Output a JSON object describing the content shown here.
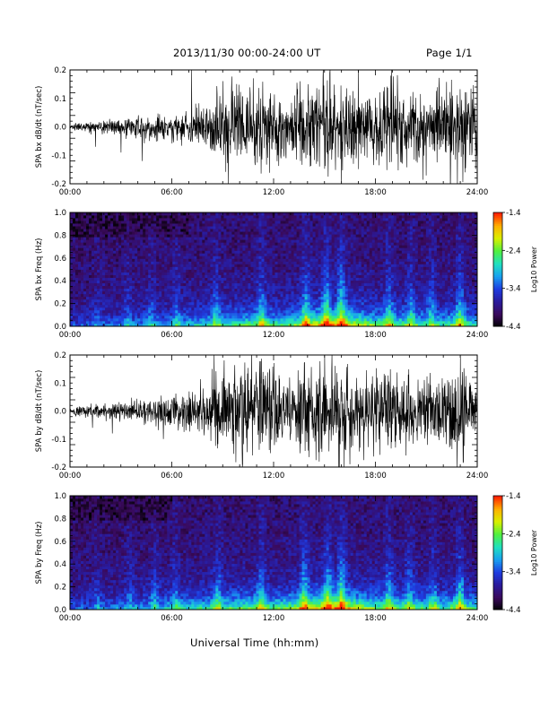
{
  "header": {
    "date_range": "2013/11/30  00:00-24:00 UT",
    "page": "Page 1/1"
  },
  "footer": {
    "xlabel": "Universal Time (hh:mm)"
  },
  "colors": {
    "trace": "#000000",
    "frame": "#000000",
    "background": "#ffffff",
    "colormap": [
      "#000000",
      "#3a0a5c",
      "#2a1a9a",
      "#1f3ce0",
      "#19a0f0",
      "#20e0c0",
      "#50f040",
      "#d8f000",
      "#ffb000",
      "#ff2000"
    ]
  },
  "chart_data": [
    {
      "type": "line",
      "subtype": "waveform",
      "ylabel": "SPA bx dB/dt (nT/sec)",
      "xlim": [
        "00:00",
        "24:00"
      ],
      "ylim": [
        -0.2,
        0.2
      ],
      "xticks": [
        "00:00",
        "06:00",
        "12:00",
        "18:00",
        "24:00"
      ],
      "yticks": [
        "-0.2",
        "-0.1",
        "0.0",
        "0.1",
        "0.2"
      ],
      "envelope_hours": [
        0,
        2,
        4,
        6,
        8,
        9,
        10,
        11,
        12,
        13,
        14,
        15,
        16,
        17,
        18,
        19,
        20,
        21,
        22,
        23,
        24
      ],
      "envelope_amplitude": [
        0.015,
        0.03,
        0.05,
        0.06,
        0.09,
        0.16,
        0.17,
        0.18,
        0.17,
        0.16,
        0.2,
        0.2,
        0.2,
        0.18,
        0.16,
        0.2,
        0.16,
        0.17,
        0.18,
        0.2,
        0.15
      ],
      "spikes": [
        {
          "time": "01:30",
          "value": -0.07
        },
        {
          "time": "03:00",
          "value": -0.09
        },
        {
          "time": "04:15",
          "value": -0.12
        },
        {
          "time": "07:10",
          "value": 0.2
        },
        {
          "time": "09:20",
          "value": -0.2
        },
        {
          "time": "15:20",
          "value": 0.2
        },
        {
          "time": "16:00",
          "value": -0.2
        },
        {
          "time": "22:50",
          "value": -0.2
        }
      ]
    },
    {
      "type": "heatmap",
      "subtype": "spectrogram",
      "ylabel": "SPA bx Freq (Hz)",
      "xlim": [
        "00:00",
        "24:00"
      ],
      "ylim": [
        0.0,
        1.0
      ],
      "xticks": [
        "00:00",
        "06:00",
        "12:00",
        "18:00",
        "24:00"
      ],
      "yticks": [
        "0.0",
        "0.2",
        "0.4",
        "0.6",
        "0.8",
        "1.0"
      ],
      "colorbar": {
        "label": "Log10 Power",
        "ticks": [
          "-1.4",
          "-2.4",
          "-3.4",
          "-4.4"
        ],
        "range": [
          -4.4,
          -1.4
        ]
      },
      "activity_hours": [
        0,
        3,
        6,
        8,
        9,
        10,
        11,
        12,
        13,
        14,
        15,
        16,
        17,
        18,
        19,
        20,
        21,
        22,
        23,
        24
      ],
      "activity_level": [
        0.25,
        0.35,
        0.45,
        0.55,
        0.6,
        0.65,
        0.7,
        0.65,
        0.7,
        0.85,
        0.95,
        1.0,
        0.85,
        0.7,
        0.7,
        0.65,
        0.6,
        0.6,
        0.75,
        0.5
      ],
      "bright_bands_hours": [
        1.6,
        3.4,
        4.8,
        6.3,
        8.6,
        11.3,
        13.9,
        15.1,
        16.0,
        18.8,
        20.1,
        21.3,
        23.0
      ]
    },
    {
      "type": "line",
      "subtype": "waveform",
      "ylabel": "SPA by dB/dt (nT/sec)",
      "xlim": [
        "00:00",
        "24:00"
      ],
      "ylim": [
        -0.2,
        0.2
      ],
      "xticks": [
        "00:00",
        "06:00",
        "12:00",
        "18:00",
        "24:00"
      ],
      "yticks": [
        "-0.2",
        "-0.1",
        "0.0",
        "0.1",
        "0.2"
      ],
      "envelope_hours": [
        0,
        2,
        4,
        6,
        8,
        9,
        10,
        11,
        12,
        13,
        14,
        15,
        16,
        17,
        18,
        19,
        20,
        21,
        22,
        23,
        24
      ],
      "envelope_amplitude": [
        0.02,
        0.035,
        0.05,
        0.07,
        0.12,
        0.18,
        0.2,
        0.2,
        0.18,
        0.14,
        0.2,
        0.2,
        0.2,
        0.18,
        0.16,
        0.18,
        0.16,
        0.15,
        0.17,
        0.2,
        0.12
      ],
      "spikes": [
        {
          "time": "01:20",
          "value": -0.06
        },
        {
          "time": "02:30",
          "value": -0.08
        },
        {
          "time": "05:30",
          "value": -0.1
        },
        {
          "time": "08:30",
          "value": 0.2
        },
        {
          "time": "10:10",
          "value": -0.2
        },
        {
          "time": "15:00",
          "value": 0.2
        },
        {
          "time": "16:10",
          "value": -0.2
        },
        {
          "time": "23:00",
          "value": 0.2
        }
      ]
    },
    {
      "type": "heatmap",
      "subtype": "spectrogram",
      "ylabel": "SPA by Freq (Hz)",
      "xlim": [
        "00:00",
        "24:00"
      ],
      "ylim": [
        0.0,
        1.0
      ],
      "xticks": [
        "00:00",
        "06:00",
        "12:00",
        "18:00",
        "24:00"
      ],
      "yticks": [
        "0.0",
        "0.2",
        "0.4",
        "0.6",
        "0.8",
        "1.0"
      ],
      "colorbar": {
        "label": "Log10 Power",
        "ticks": [
          "-1.4",
          "-2.4",
          "-3.4",
          "-4.4"
        ],
        "range": [
          -4.4,
          -1.4
        ]
      },
      "activity_hours": [
        0,
        3,
        6,
        8,
        9,
        10,
        11,
        12,
        13,
        14,
        15,
        16,
        17,
        18,
        19,
        20,
        21,
        22,
        23,
        24
      ],
      "activity_level": [
        0.28,
        0.38,
        0.5,
        0.6,
        0.65,
        0.7,
        0.72,
        0.68,
        0.75,
        0.88,
        0.95,
        1.0,
        0.85,
        0.72,
        0.72,
        0.66,
        0.62,
        0.62,
        0.78,
        0.55
      ],
      "bright_bands_hours": [
        1.6,
        3.5,
        5.0,
        6.2,
        8.7,
        11.3,
        13.8,
        15.2,
        16.0,
        18.8,
        20.0,
        21.4,
        23.0
      ]
    }
  ]
}
